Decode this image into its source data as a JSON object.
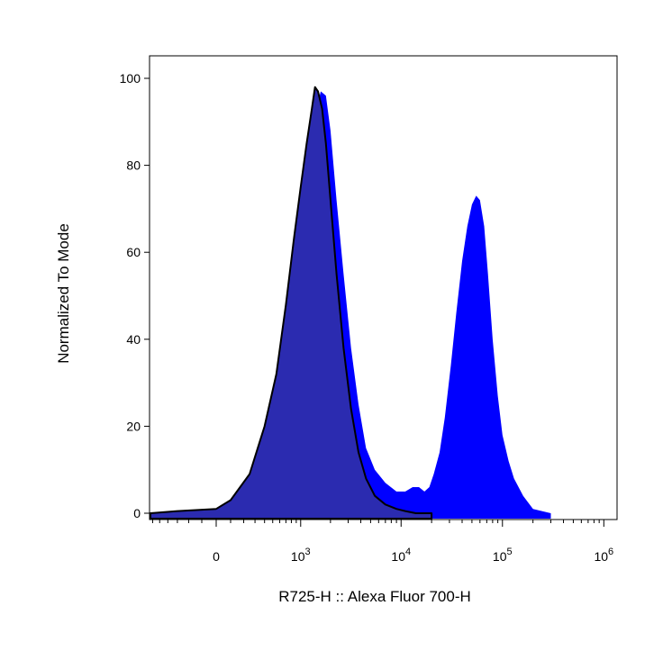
{
  "chart_data": {
    "type": "area",
    "xlabel": "R725-H :: Alexa Fluor 700-H",
    "ylabel": "Normalized To Mode",
    "ylim": [
      0,
      100
    ],
    "x_scale": "biexponential",
    "x_ticks": [
      {
        "label": "0",
        "value": 0
      },
      {
        "label": "10",
        "sup": "3",
        "value": 1000
      },
      {
        "label": "10",
        "sup": "4",
        "value": 10000
      },
      {
        "label": "10",
        "sup": "5",
        "value": 100000
      },
      {
        "label": "10",
        "sup": "6",
        "value": 1000000
      }
    ],
    "y_ticks": [
      0,
      20,
      40,
      60,
      80,
      100
    ],
    "grid": false,
    "legend": "none",
    "series": [
      {
        "style": "filled",
        "fill": "#0000ff",
        "x": [
          -800,
          -300,
          0,
          100,
          250,
          400,
          550,
          700,
          850,
          1000,
          1150,
          1300,
          1450,
          1600,
          1800,
          2000,
          2300,
          2700,
          3200,
          3800,
          4500,
          5500,
          7000,
          9000,
          11000,
          13000,
          15000,
          17000,
          19000,
          21000,
          24000,
          27000,
          31000,
          35000,
          40000,
          45000,
          50000,
          55000,
          60000,
          66000,
          72000,
          80000,
          90000,
          100000,
          115000,
          130000,
          160000,
          200000,
          300000
        ],
        "y": [
          0,
          0.5,
          1,
          3,
          8,
          18,
          30,
          44,
          58,
          70,
          80,
          87,
          93,
          97,
          96,
          88,
          72,
          55,
          38,
          25,
          15,
          10,
          7,
          5,
          5,
          6,
          6,
          5,
          6,
          9,
          14,
          22,
          34,
          46,
          58,
          66,
          71,
          73,
          72,
          66,
          55,
          40,
          27,
          18,
          12,
          8,
          4,
          1,
          0
        ]
      },
      {
        "style": "filled",
        "fill": "#2b2bb0",
        "stroke": "#000000",
        "x": [
          -800,
          -300,
          0,
          100,
          250,
          400,
          550,
          700,
          850,
          1000,
          1150,
          1300,
          1400,
          1500,
          1650,
          1800,
          2000,
          2300,
          2700,
          3200,
          3800,
          4500,
          5500,
          7000,
          9000,
          11000,
          14000,
          20000
        ],
        "y": [
          0,
          0.5,
          1,
          3,
          9,
          20,
          32,
          48,
          63,
          75,
          85,
          93,
          98,
          97,
          93,
          85,
          72,
          55,
          38,
          24,
          14,
          8,
          4,
          2,
          1,
          0.5,
          0,
          0
        ]
      }
    ]
  }
}
